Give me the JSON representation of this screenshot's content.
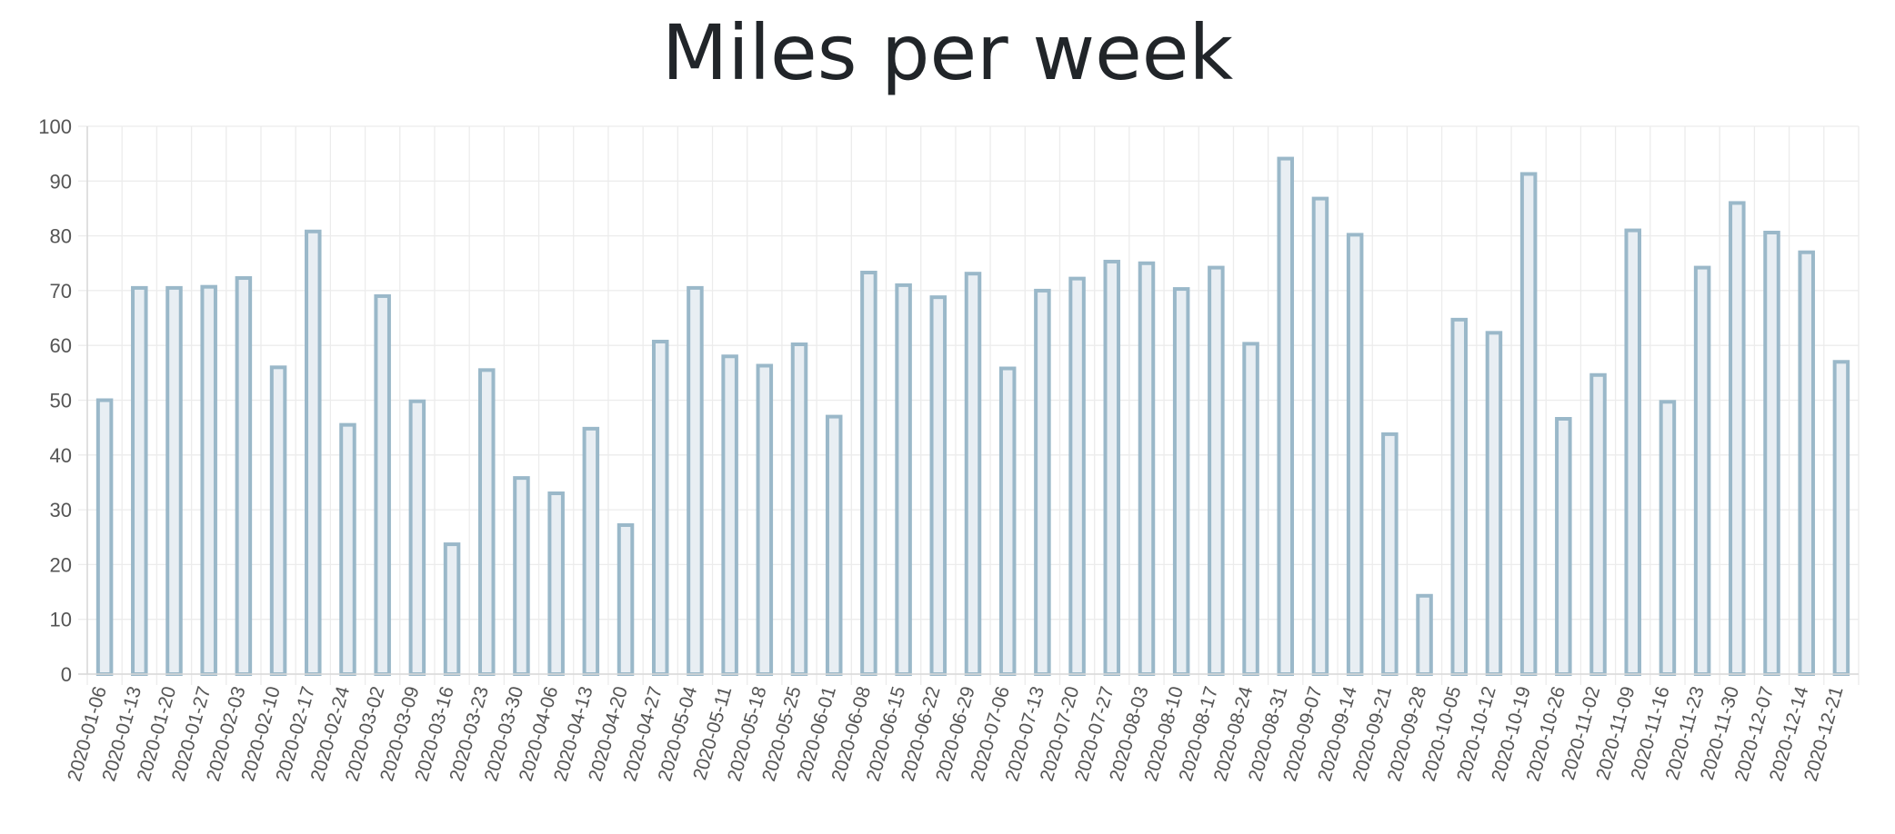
{
  "chart_data": {
    "type": "bar",
    "title": "Miles per week",
    "xlabel": "",
    "ylabel": "",
    "ylim": [
      0,
      100
    ],
    "yticks": [
      0,
      10,
      20,
      30,
      40,
      50,
      60,
      70,
      80,
      90,
      100
    ],
    "grid": true,
    "legend": "none",
    "colors": {
      "bar_fill": "#e8eef3",
      "bar_stroke": "#9ab8c9",
      "grid": "#ececec",
      "title": "#212529"
    },
    "categories": [
      "2020-01-06",
      "2020-01-13",
      "2020-01-20",
      "2020-01-27",
      "2020-02-03",
      "2020-02-10",
      "2020-02-17",
      "2020-02-24",
      "2020-03-02",
      "2020-03-09",
      "2020-03-16",
      "2020-03-23",
      "2020-03-30",
      "2020-04-06",
      "2020-04-13",
      "2020-04-20",
      "2020-04-27",
      "2020-05-04",
      "2020-05-11",
      "2020-05-18",
      "2020-05-25",
      "2020-06-01",
      "2020-06-08",
      "2020-06-15",
      "2020-06-22",
      "2020-06-29",
      "2020-07-06",
      "2020-07-13",
      "2020-07-20",
      "2020-07-27",
      "2020-08-03",
      "2020-08-10",
      "2020-08-17",
      "2020-08-24",
      "2020-08-31",
      "2020-09-07",
      "2020-09-14",
      "2020-09-21",
      "2020-09-28",
      "2020-10-05",
      "2020-10-12",
      "2020-10-19",
      "2020-10-26",
      "2020-11-02",
      "2020-11-09",
      "2020-11-16",
      "2020-11-23",
      "2020-11-30",
      "2020-12-07",
      "2020-12-14",
      "2020-12-21"
    ],
    "values": [
      50,
      70.5,
      70.5,
      70.7,
      72.3,
      56,
      80.8,
      45.5,
      69,
      49.8,
      23.7,
      55.5,
      35.8,
      33,
      44.8,
      27.2,
      60.7,
      70.5,
      58,
      56.3,
      60.2,
      47,
      73.3,
      71,
      68.8,
      73.1,
      55.8,
      70,
      72.2,
      75.3,
      75,
      70.3,
      74.2,
      60.3,
      94.1,
      86.8,
      80.2,
      43.8,
      14.3,
      64.7,
      62.3,
      91.3,
      46.6,
      54.6,
      81,
      49.7,
      74.2,
      86,
      80.6,
      77,
      57
    ]
  }
}
